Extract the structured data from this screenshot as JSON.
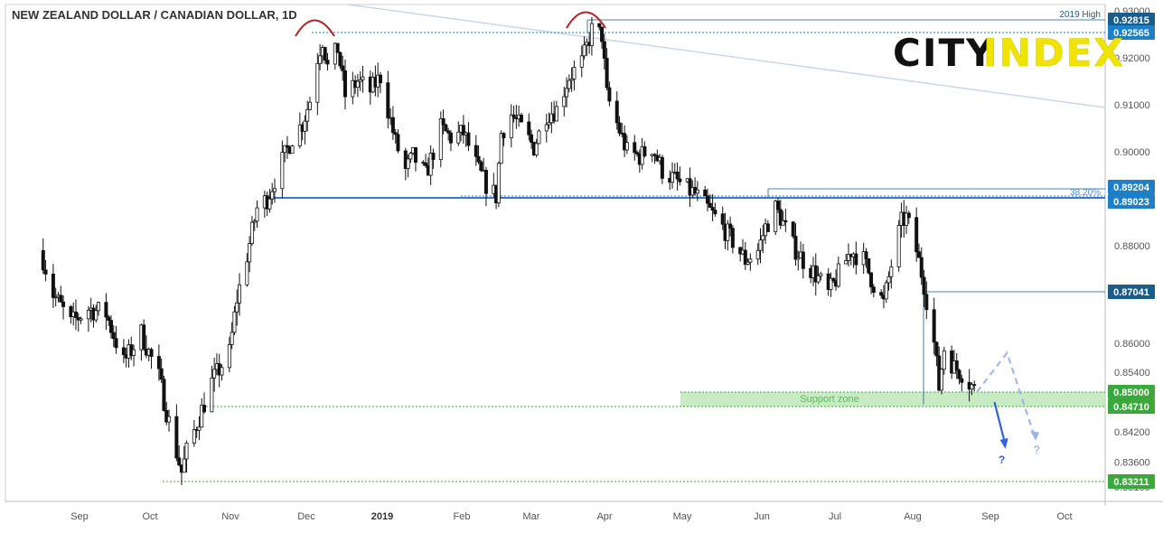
{
  "chart_data": {
    "type": "candlestick",
    "title": "NEW ZEALAND DOLLAR / CANADIAN DOLLAR, 1D",
    "x_axis_labels": [
      "Sep",
      "Oct",
      "Nov",
      "Dec",
      "2019",
      "Feb",
      "Mar",
      "Apr",
      "May",
      "Jun",
      "Jul",
      "Aug",
      "Sep",
      "Oct"
    ],
    "y_axis_ticks": [
      "0.93000",
      "0.92000",
      "0.91000",
      "0.90000",
      "0.88000",
      "0.86000",
      "0.85400",
      "0.84200",
      "0.83600",
      "0.83100"
    ],
    "ylim": [
      0.829,
      0.9315
    ],
    "price_labels": [
      {
        "value": 0.92815,
        "text": "0.92815",
        "color": "#1a5c8a"
      },
      {
        "value": 0.92565,
        "text": "0.92565",
        "color": "#1e7fc7"
      },
      {
        "value": 0.89204,
        "text": "0.89204",
        "color": "#1e7fc7"
      },
      {
        "value": 0.89023,
        "text": "0.89023",
        "color": "#1e7fc7"
      },
      {
        "value": 0.87041,
        "text": "0.87041",
        "color": "#1a5c8a"
      },
      {
        "value": 0.85,
        "text": "0.85000",
        "color": "#3aa83a"
      },
      {
        "value": 0.8471,
        "text": "0.84710",
        "color": "#3aa83a"
      },
      {
        "value": 0.83211,
        "text": "0.83211",
        "color": "#3aa83a"
      }
    ],
    "annotations": {
      "high_label": "2019 High",
      "fib_label": "38.20%",
      "support_label": "Support zone",
      "question_mark": "?"
    },
    "key_levels": {
      "high_2019": 0.92815,
      "double_top": 0.92565,
      "fib_382": 0.89204,
      "support_line": 0.89023,
      "resistance": 0.87041,
      "support_zone_top": 0.85,
      "support_zone_bottom": 0.8471,
      "low": 0.83211
    },
    "daily_close_anchors": [
      [
        "2018-08-15",
        0.879
      ],
      [
        "2018-08-20",
        0.87
      ],
      [
        "2018-08-27",
        0.864
      ],
      [
        "2018-09-03",
        0.867
      ],
      [
        "2018-09-10",
        0.866
      ],
      [
        "2018-09-17",
        0.856
      ],
      [
        "2018-09-24",
        0.862
      ],
      [
        "2018-10-01",
        0.853
      ],
      [
        "2018-10-05",
        0.844
      ],
      [
        "2018-10-08",
        0.838
      ],
      [
        "2018-10-10",
        0.834
      ],
      [
        "2018-10-12",
        0.838
      ],
      [
        "2018-10-17",
        0.845
      ],
      [
        "2018-10-22",
        0.852
      ],
      [
        "2018-10-29",
        0.858
      ],
      [
        "2018-11-01",
        0.869
      ],
      [
        "2018-11-05",
        0.878
      ],
      [
        "2018-11-09",
        0.888
      ],
      [
        "2018-11-13",
        0.89
      ],
      [
        "2018-11-19",
        0.898
      ],
      [
        "2018-11-23",
        0.903
      ],
      [
        "2018-11-27",
        0.906
      ],
      [
        "2018-11-30",
        0.911
      ],
      [
        "2018-12-03",
        0.92
      ],
      [
        "2018-12-05",
        0.924
      ],
      [
        "2018-12-07",
        0.918
      ],
      [
        "2018-12-11",
        0.922
      ],
      [
        "2018-12-14",
        0.912
      ],
      [
        "2018-12-19",
        0.915
      ],
      [
        "2018-12-24",
        0.913
      ],
      [
        "2018-12-28",
        0.916
      ],
      [
        "2019-01-03",
        0.902
      ],
      [
        "2019-01-07",
        0.896
      ],
      [
        "2019-01-10",
        0.899
      ],
      [
        "2019-01-15",
        0.895
      ],
      [
        "2019-01-21",
        0.905
      ],
      [
        "2019-01-25",
        0.903
      ],
      [
        "2019-01-30",
        0.904
      ],
      [
        "2019-02-05",
        0.896
      ],
      [
        "2019-02-08",
        0.893
      ],
      [
        "2019-02-12",
        0.8905
      ],
      [
        "2019-02-14",
        0.904
      ],
      [
        "2019-02-18",
        0.908
      ],
      [
        "2019-02-22",
        0.905
      ],
      [
        "2019-02-27",
        0.901
      ],
      [
        "2019-03-04",
        0.908
      ],
      [
        "2019-03-08",
        0.909
      ],
      [
        "2019-03-13",
        0.916
      ],
      [
        "2019-03-18",
        0.919
      ],
      [
        "2019-03-22",
        0.926
      ],
      [
        "2019-03-26",
        0.925
      ],
      [
        "2019-03-28",
        0.912
      ],
      [
        "2019-04-01",
        0.906
      ],
      [
        "2019-04-05",
        0.9
      ],
      [
        "2019-04-10",
        0.899
      ],
      [
        "2019-04-15",
        0.901
      ],
      [
        "2019-04-19",
        0.896
      ],
      [
        "2019-04-24",
        0.894
      ],
      [
        "2019-04-29",
        0.892
      ],
      [
        "2019-05-02",
        0.891
      ],
      [
        "2019-05-07",
        0.888
      ],
      [
        "2019-05-13",
        0.884
      ],
      [
        "2019-05-17",
        0.881
      ],
      [
        "2019-05-22",
        0.877
      ],
      [
        "2019-05-27",
        0.879
      ],
      [
        "2019-05-30",
        0.884
      ],
      [
        "2019-06-03",
        0.888
      ],
      [
        "2019-06-05",
        0.886
      ],
      [
        "2019-06-10",
        0.88
      ],
      [
        "2019-06-14",
        0.877
      ],
      [
        "2019-06-19",
        0.874
      ],
      [
        "2019-06-24",
        0.87
      ],
      [
        "2019-06-28",
        0.874
      ],
      [
        "2019-07-03",
        0.879
      ],
      [
        "2019-07-08",
        0.877
      ],
      [
        "2019-07-12",
        0.872
      ],
      [
        "2019-07-16",
        0.868
      ],
      [
        "2019-07-19",
        0.876
      ],
      [
        "2019-07-23",
        0.885
      ],
      [
        "2019-07-25",
        0.886
      ],
      [
        "2019-07-29",
        0.879
      ],
      [
        "2019-08-01",
        0.872
      ],
      [
        "2019-08-05",
        0.86
      ],
      [
        "2019-08-07",
        0.851
      ],
      [
        "2019-08-09",
        0.859
      ],
      [
        "2019-08-13",
        0.855
      ],
      [
        "2019-08-16",
        0.854
      ],
      [
        "2019-08-19",
        0.852
      ],
      [
        "2019-08-21",
        0.8505
      ]
    ],
    "scenario_paths": {
      "bearish": [
        [
          "2019-08-29",
          0.848
        ],
        [
          "2019-09-02",
          0.839
        ]
      ],
      "bullish": [
        [
          "2019-08-22",
          0.85
        ],
        [
          "2019-09-03",
          0.858
        ],
        [
          "2019-09-14",
          0.841
        ]
      ]
    }
  },
  "logo": {
    "part1": "CITY",
    "part2": "INDEX"
  },
  "colors": {
    "up": "#ffffff",
    "down": "#111111",
    "support": "#3aa83a",
    "level": "#1e7fc7",
    "trendline": "#c9d6ec",
    "arc": "#b22222",
    "scenario": "#9bb3e8"
  }
}
